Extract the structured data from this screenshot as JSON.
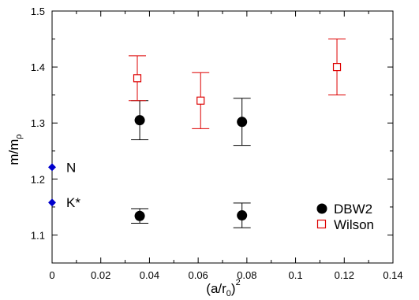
{
  "chart_data": {
    "type": "scatter",
    "xlabel_base": "(a/r",
    "xlabel_sub": "0",
    "xlabel_close": ")",
    "xlabel_sup": "2",
    "ylabel_base": "m/m",
    "ylabel_sub": "ρ",
    "xlim": [
      0,
      0.14
    ],
    "ylim": [
      1.05,
      1.5
    ],
    "x_ticks": [
      "0",
      "0.02",
      "0.04",
      "0.06",
      "0.08",
      "0.1",
      "0.12",
      "0.14"
    ],
    "y_ticks": [
      "1.1",
      "1.2",
      "1.3",
      "1.4",
      "1.5"
    ],
    "series": [
      {
        "name": "DBW2",
        "marker": "filled-circle",
        "color": "#000000",
        "points": [
          {
            "x": 0.036,
            "y": 1.305,
            "err": 0.035
          },
          {
            "x": 0.078,
            "y": 1.302,
            "err": 0.042
          },
          {
            "x": 0.036,
            "y": 1.134,
            "err": 0.013
          },
          {
            "x": 0.078,
            "y": 1.135,
            "err": 0.022
          }
        ]
      },
      {
        "name": "Wilson",
        "marker": "open-square",
        "color": "#dd0000",
        "points": [
          {
            "x": 0.035,
            "y": 1.38,
            "err": 0.04
          },
          {
            "x": 0.061,
            "y": 1.34,
            "err": 0.05
          },
          {
            "x": 0.117,
            "y": 1.4,
            "err": 0.05
          }
        ]
      }
    ],
    "experimental": {
      "color": "#0000cc",
      "marker": "diamond",
      "points": [
        {
          "label": "N",
          "x": 0,
          "y": 1.221
        },
        {
          "label": "K*",
          "x": 0,
          "y": 1.158
        }
      ]
    },
    "legend_position": "bottom-right"
  }
}
